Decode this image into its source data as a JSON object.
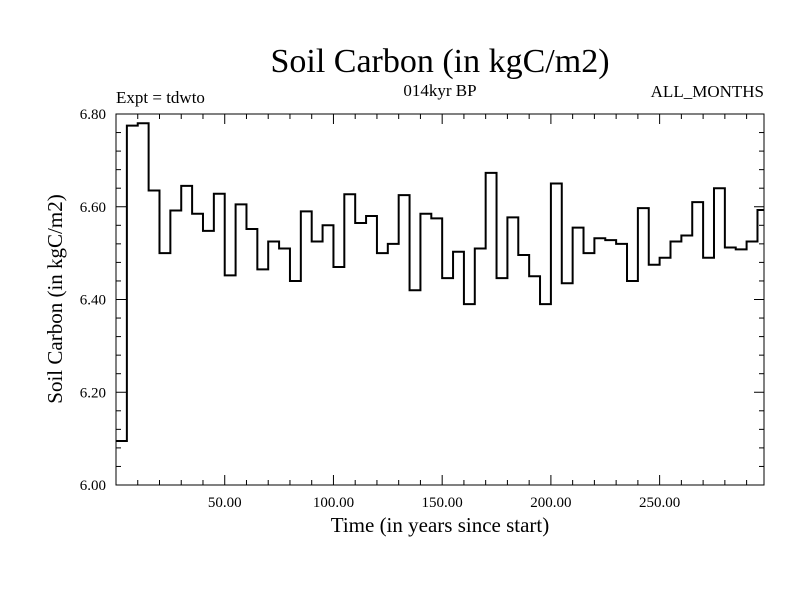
{
  "chart_data": {
    "type": "line",
    "title": "Soil Carbon (in kgC/m2)",
    "subtitle_left": "Expt = tdwto",
    "subtitle_center": "014kyr BP",
    "subtitle_right": "ALL_MONTHS",
    "xlabel": "Time (in years since start)",
    "ylabel": "Soil Carbon (in kgC/m2)",
    "xlim": [
      0,
      298
    ],
    "ylim": [
      6.0,
      6.8
    ],
    "x_ticks": [
      50,
      100,
      150,
      200,
      250
    ],
    "x_tick_labels": [
      "50.00",
      "100.00",
      "150.00",
      "200.00",
      "250.00"
    ],
    "y_ticks": [
      6.0,
      6.2,
      6.4,
      6.6,
      6.8
    ],
    "y_tick_labels": [
      "6.00",
      "6.20",
      "6.40",
      "6.60",
      "6.80"
    ],
    "step": 5,
    "series": [
      {
        "name": "Soil Carbon",
        "values": [
          6.095,
          6.775,
          6.78,
          6.635,
          6.5,
          6.592,
          6.645,
          6.585,
          6.548,
          6.628,
          6.452,
          6.605,
          6.552,
          6.465,
          6.525,
          6.51,
          6.44,
          6.59,
          6.525,
          6.56,
          6.47,
          6.627,
          6.565,
          6.58,
          6.5,
          6.52,
          6.625,
          6.42,
          6.585,
          6.575,
          6.446,
          6.503,
          6.39,
          6.51,
          6.673,
          6.446,
          6.577,
          6.496,
          6.45,
          6.39,
          6.65,
          6.435,
          6.555,
          6.5,
          6.532,
          6.528,
          6.52,
          6.44,
          6.597,
          6.475,
          6.49,
          6.525,
          6.538,
          6.61,
          6.49,
          6.64,
          6.512,
          6.508,
          6.525,
          6.593
        ]
      }
    ]
  }
}
